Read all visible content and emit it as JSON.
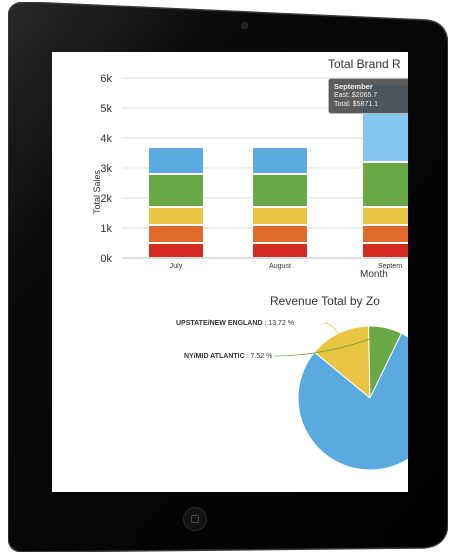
{
  "colors": {
    "blue": "#5aa9e0",
    "green": "#6aa845",
    "yellow": "#e8c542",
    "orange": "#e06a2c",
    "red": "#d42a1f",
    "bezel": "#0b0b0b"
  },
  "chart_data": [
    {
      "type": "bar",
      "title": "Total Brand R",
      "xlabel": "Month",
      "ylabel": "Total Sales",
      "categories": [
        "July",
        "August",
        "Septem"
      ],
      "yticks": [
        "0k",
        "1k",
        "2k",
        "3k",
        "4k",
        "5k",
        "6k"
      ],
      "ylim": [
        0,
        6000
      ],
      "grid": true,
      "series": [
        {
          "color": "red",
          "values": [
            500,
            500,
            500
          ]
        },
        {
          "color": "orange",
          "values": [
            600,
            600,
            600
          ]
        },
        {
          "color": "yellow",
          "values": [
            600,
            600,
            600
          ]
        },
        {
          "color": "green",
          "values": [
            1100,
            1100,
            1500
          ]
        },
        {
          "color": "blue",
          "values": [
            900,
            900,
            2600
          ]
        }
      ],
      "tooltip": {
        "title": "September",
        "line1": "East: $2065.7",
        "line2": "Total: $5871.1"
      }
    },
    {
      "type": "pie",
      "title": "Revenue Total by Zo",
      "slices": [
        {
          "label": "UPSTATE/NEW ENGLAND",
          "value_text": ": 13.72 %",
          "value": 13.72,
          "color": "yellow"
        },
        {
          "label": "NY/MID ATLANTIC",
          "value_text": ": 7.52 %",
          "value": 7.52,
          "color": "green"
        },
        {
          "label": "",
          "value_text": "",
          "value": 78.76,
          "color": "blue"
        }
      ]
    }
  ]
}
